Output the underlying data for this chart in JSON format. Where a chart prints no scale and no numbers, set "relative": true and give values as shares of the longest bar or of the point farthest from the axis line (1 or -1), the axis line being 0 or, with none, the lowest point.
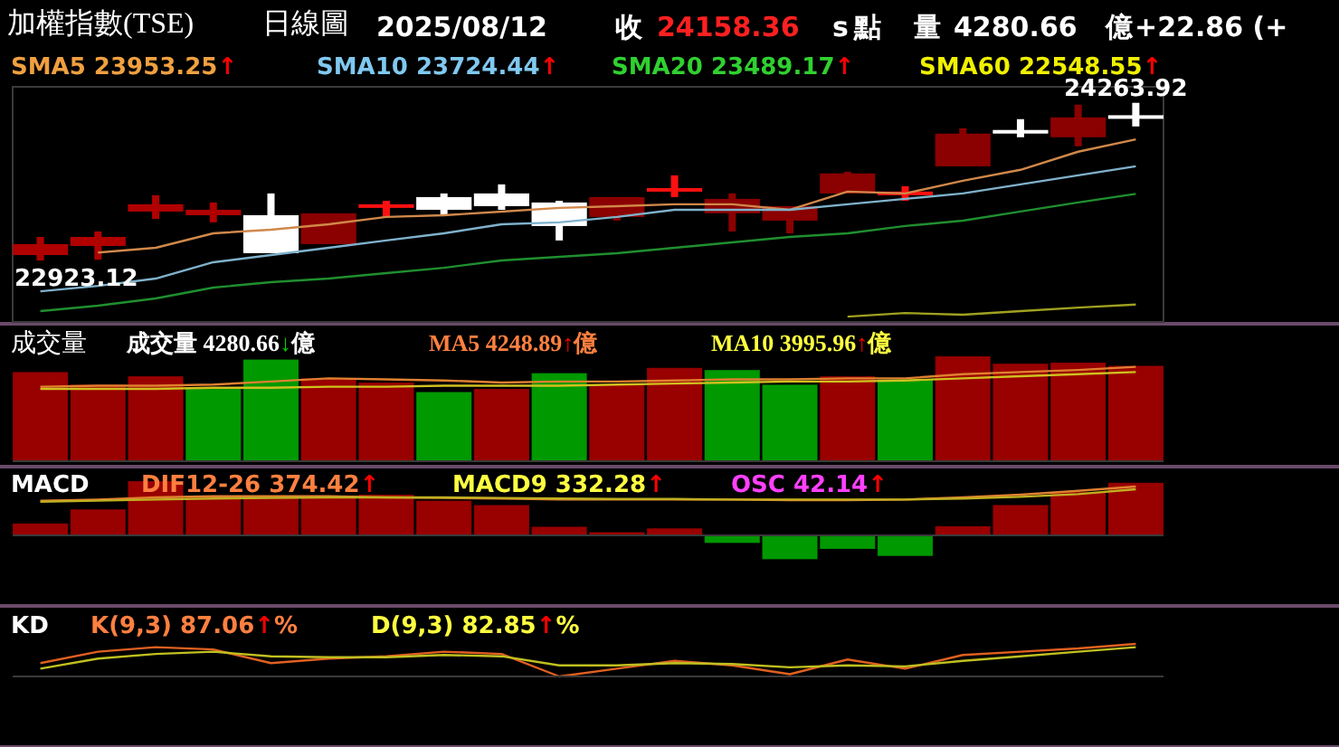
{
  "chart_data": [
    {
      "type": "candlestick",
      "title": "加權指數(TSE)",
      "subtitle": "日線圖",
      "annotations": [
        "2025/08/12",
        "收",
        "24158.36",
        "s",
        "點",
        "量",
        "4280.66",
        "億",
        "+22.86 (+",
        "SMA5 23953.25↑",
        "SMA10 23724.44↑",
        "SMA20 23489.17↑",
        "SMA60 22548.55↑",
        "24263.92",
        "22923.12"
      ],
      "categories": [
        null,
        null,
        null,
        null,
        null,
        null,
        null,
        null,
        null,
        null,
        null,
        null,
        null,
        null,
        null,
        null,
        null,
        null,
        null,
        null
      ],
      "ohlc": [
        [
          22969,
          23123,
          22923.12,
          23062
        ],
        [
          23046,
          23170,
          22930,
          23123
        ],
        [
          23339,
          23478,
          23277,
          23401
        ],
        [
          23308,
          23416,
          23247,
          23354
        ],
        [
          23308,
          23493,
          22985,
          22985
        ],
        [
          23062,
          23324,
          23062,
          23324
        ],
        [
          23385,
          23431,
          23293,
          23401
        ],
        [
          23462,
          23493,
          23308,
          23354
        ],
        [
          23493,
          23570,
          23354,
          23385
        ],
        [
          23416,
          23431,
          23093,
          23216
        ],
        [
          23293,
          23462,
          23262,
          23462
        ],
        [
          23524,
          23647,
          23462,
          23539
        ],
        [
          23324,
          23493,
          23170,
          23447
        ],
        [
          23262,
          23385,
          23154,
          23385
        ],
        [
          23493,
          23678,
          23493,
          23663
        ],
        [
          23493,
          23555,
          23431,
          23509
        ],
        [
          23724,
          24048,
          23724,
          24002
        ],
        [
          24033,
          24125,
          23971,
          24017
        ],
        [
          23971,
          24248,
          23894,
          24140
        ],
        [
          24150,
          24263.92,
          24063,
          24158.36
        ]
      ],
      "colors": [
        "#b00000",
        "#b00000",
        "#b00000",
        "#b00000",
        "#ffffff",
        "#8b0000",
        "#ff1010",
        "#ffffff",
        "#ffffff",
        "#ffffff",
        "#8b0000",
        "#ff1010",
        "#8b0000",
        "#8b0000",
        "#8b0000",
        "#ff1010",
        "#8b0000",
        "#ffffff",
        "#8b0000",
        "#ffffff"
      ],
      "ylim": [
        22400,
        24400
      ],
      "series": [
        {
          "type": "line",
          "color": "#d0884a",
          "values": [
            null,
            22990,
            23031,
            23154,
            23185,
            23231,
            23293,
            23308,
            23339,
            23370,
            23385,
            23401,
            23401,
            23354,
            23509,
            23493,
            23601,
            23694,
            23848,
            23953.25
          ]
        },
        {
          "type": "line",
          "color": "#7fb2cc",
          "values": [
            22661,
            22707,
            22769,
            22908,
            22969,
            23031,
            23093,
            23154,
            23231,
            23247,
            23293,
            23354,
            23354,
            23354,
            23401,
            23447,
            23493,
            23570,
            23647,
            23724.44
          ]
        },
        {
          "type": "line",
          "color": "#1f8f2f",
          "values": [
            22492,
            22538,
            22600,
            22692,
            22738,
            22769,
            22815,
            22861,
            22923,
            22954,
            22985,
            23031,
            23077,
            23123,
            23154,
            23216,
            23262,
            23339,
            23416,
            23489.17
          ]
        },
        {
          "type": "line",
          "color": "#a0a020",
          "values": [
            null,
            null,
            null,
            null,
            null,
            null,
            null,
            null,
            null,
            null,
            null,
            null,
            null,
            null,
            22445,
            22476,
            22461,
            22492,
            22522,
            22548.55
          ]
        }
      ]
    },
    {
      "type": "bar",
      "title": "成交量",
      "annotations": [
        "成交量 4280.66↓億",
        "MA5 4248.89↑億",
        "MA10 3995.96↑億"
      ],
      "categories": [
        null,
        null,
        null,
        null,
        null,
        null,
        null,
        null,
        null,
        null,
        null,
        null,
        null,
        null,
        null,
        null,
        null,
        null,
        null,
        null
      ],
      "relative": true,
      "series": [
        {
          "type": "bar",
          "colors": [
            "#990000",
            "#990000",
            "#990000",
            "#009900",
            "#009900",
            "#990000",
            "#990000",
            "#009900",
            "#990000",
            "#009900",
            "#990000",
            "#990000",
            "#009900",
            "#009900",
            "#990000",
            "#009900",
            "#990000",
            "#990000",
            "#990000",
            "#990000"
          ],
          "values": [
            0.85,
            0.73,
            0.81,
            0.69,
            0.97,
            0.79,
            0.75,
            0.66,
            0.69,
            0.84,
            0.73,
            0.89,
            0.87,
            0.73,
            0.81,
            0.78,
            1,
            0.93,
            0.94,
            0.91
          ]
        },
        {
          "type": "line",
          "color": "#e08030",
          "values": [
            0.71,
            0.72,
            0.72,
            0.73,
            0.76,
            0.79,
            0.78,
            0.77,
            0.75,
            0.76,
            0.76,
            0.77,
            0.78,
            0.78,
            0.79,
            0.79,
            0.83,
            0.85,
            0.87,
            0.9
          ]
        },
        {
          "type": "line",
          "color": "#d0c020",
          "values": [
            0.69,
            0.69,
            0.69,
            0.7,
            0.7,
            0.71,
            0.71,
            0.72,
            0.72,
            0.72,
            0.73,
            0.74,
            0.75,
            0.76,
            0.76,
            0.77,
            0.79,
            0.81,
            0.83,
            0.85
          ]
        }
      ]
    },
    {
      "type": "bar",
      "title": "MACD",
      "annotations": [
        "DIF12-26 374.42↑",
        "MACD9 332.28↑",
        "OSC 42.14↑"
      ],
      "categories": [
        null,
        null,
        null,
        null,
        null,
        null,
        null,
        null,
        null,
        null,
        null,
        null,
        null,
        null,
        null,
        null,
        null,
        null,
        null,
        null
      ],
      "relative": true,
      "series": [
        {
          "type": "bar",
          "colors": [
            "#990000",
            "#990000",
            "#990000",
            "#990000",
            "#990000",
            "#990000",
            "#990000",
            "#990000",
            "#990000",
            "#990000",
            "#990000",
            "#990000",
            "#009900",
            "#009900",
            "#009900",
            "#009900",
            "#990000",
            "#990000",
            "#990000",
            "#990000"
          ],
          "values": [
            0.22,
            0.48,
            1,
            0.72,
            0.72,
            0.72,
            0.75,
            0.64,
            0.56,
            0.16,
            0.06,
            0.13,
            -0.14,
            -0.44,
            -0.25,
            -0.38,
            0.17,
            0.56,
            0.8,
            0.97
          ]
        },
        {
          "type": "line",
          "color": "#e08030",
          "values": [
            0.64,
            0.66,
            0.7,
            0.72,
            0.72,
            0.72,
            0.7,
            0.69,
            0.68,
            0.66,
            0.66,
            0.66,
            0.66,
            0.65,
            0.65,
            0.66,
            0.7,
            0.75,
            0.82,
            0.9
          ]
        },
        {
          "type": "line",
          "color": "#c0b020",
          "values": [
            0.62,
            0.64,
            0.66,
            0.68,
            0.69,
            0.7,
            0.7,
            0.7,
            0.69,
            0.68,
            0.67,
            0.67,
            0.66,
            0.66,
            0.66,
            0.66,
            0.68,
            0.71,
            0.76,
            0.85
          ]
        }
      ]
    },
    {
      "type": "line",
      "title": "KD",
      "annotations": [
        "K(9,3) 87.06↑%",
        "D(9,3) 82.85↑%"
      ],
      "categories": [
        null,
        null,
        null,
        null,
        null,
        null,
        null,
        null,
        null,
        null,
        null,
        null,
        null,
        null,
        null,
        null,
        null,
        null,
        null,
        null
      ],
      "relative": true,
      "series": [
        {
          "type": "line",
          "color": "#e06020",
          "values": [
            0.41,
            0.76,
            0.9,
            0.83,
            0.41,
            0.55,
            0.62,
            0.76,
            0.69,
            0,
            0.24,
            0.48,
            0.34,
            0.07,
            0.52,
            0.24,
            0.66,
            0.76,
            0.86,
            1
          ]
        },
        {
          "type": "line",
          "color": "#c0c020",
          "values": [
            0.24,
            0.55,
            0.69,
            0.76,
            0.62,
            0.59,
            0.59,
            0.66,
            0.62,
            0.34,
            0.34,
            0.41,
            0.38,
            0.28,
            0.34,
            0.31,
            0.48,
            0.62,
            0.76,
            0.9
          ]
        }
      ]
    }
  ]
}
